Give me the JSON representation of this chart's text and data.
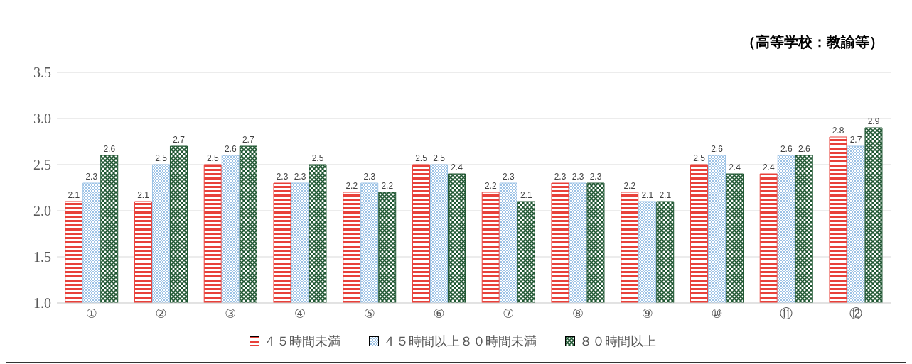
{
  "chart_data": {
    "type": "bar",
    "title": "（高等学校：教諭等）",
    "categories": [
      "①",
      "②",
      "③",
      "④",
      "⑤",
      "⑥",
      "⑦",
      "⑧",
      "⑨",
      "⑩",
      "⑪",
      "⑫"
    ],
    "series": [
      {
        "name": "４５時間未満",
        "color": "#e8413a",
        "values": [
          2.1,
          2.1,
          2.5,
          2.3,
          2.2,
          2.5,
          2.2,
          2.3,
          2.2,
          2.5,
          2.4,
          2.8
        ]
      },
      {
        "name": "４５時間以上８０時間未満",
        "color": "#9dc3e6",
        "values": [
          2.3,
          2.5,
          2.6,
          2.3,
          2.3,
          2.5,
          2.3,
          2.3,
          2.1,
          2.6,
          2.6,
          2.7
        ]
      },
      {
        "name": "８０時間以上",
        "color": "#1e5631",
        "values": [
          2.6,
          2.7,
          2.7,
          2.5,
          2.2,
          2.4,
          2.1,
          2.3,
          2.1,
          2.4,
          2.6,
          2.9
        ]
      }
    ],
    "ylim": [
      1,
      3.5
    ],
    "yticks": [
      {
        "value": 1,
        "label": "1.0"
      },
      {
        "value": 1.5,
        "label": "1.5"
      },
      {
        "value": 2,
        "label": "2.0"
      },
      {
        "value": 2.5,
        "label": "2.5"
      },
      {
        "value": 3,
        "label": "3.0"
      },
      {
        "value": 3.5,
        "label": "3.5"
      }
    ],
    "grid": "y",
    "legend": "bottom",
    "data_labels": true
  }
}
